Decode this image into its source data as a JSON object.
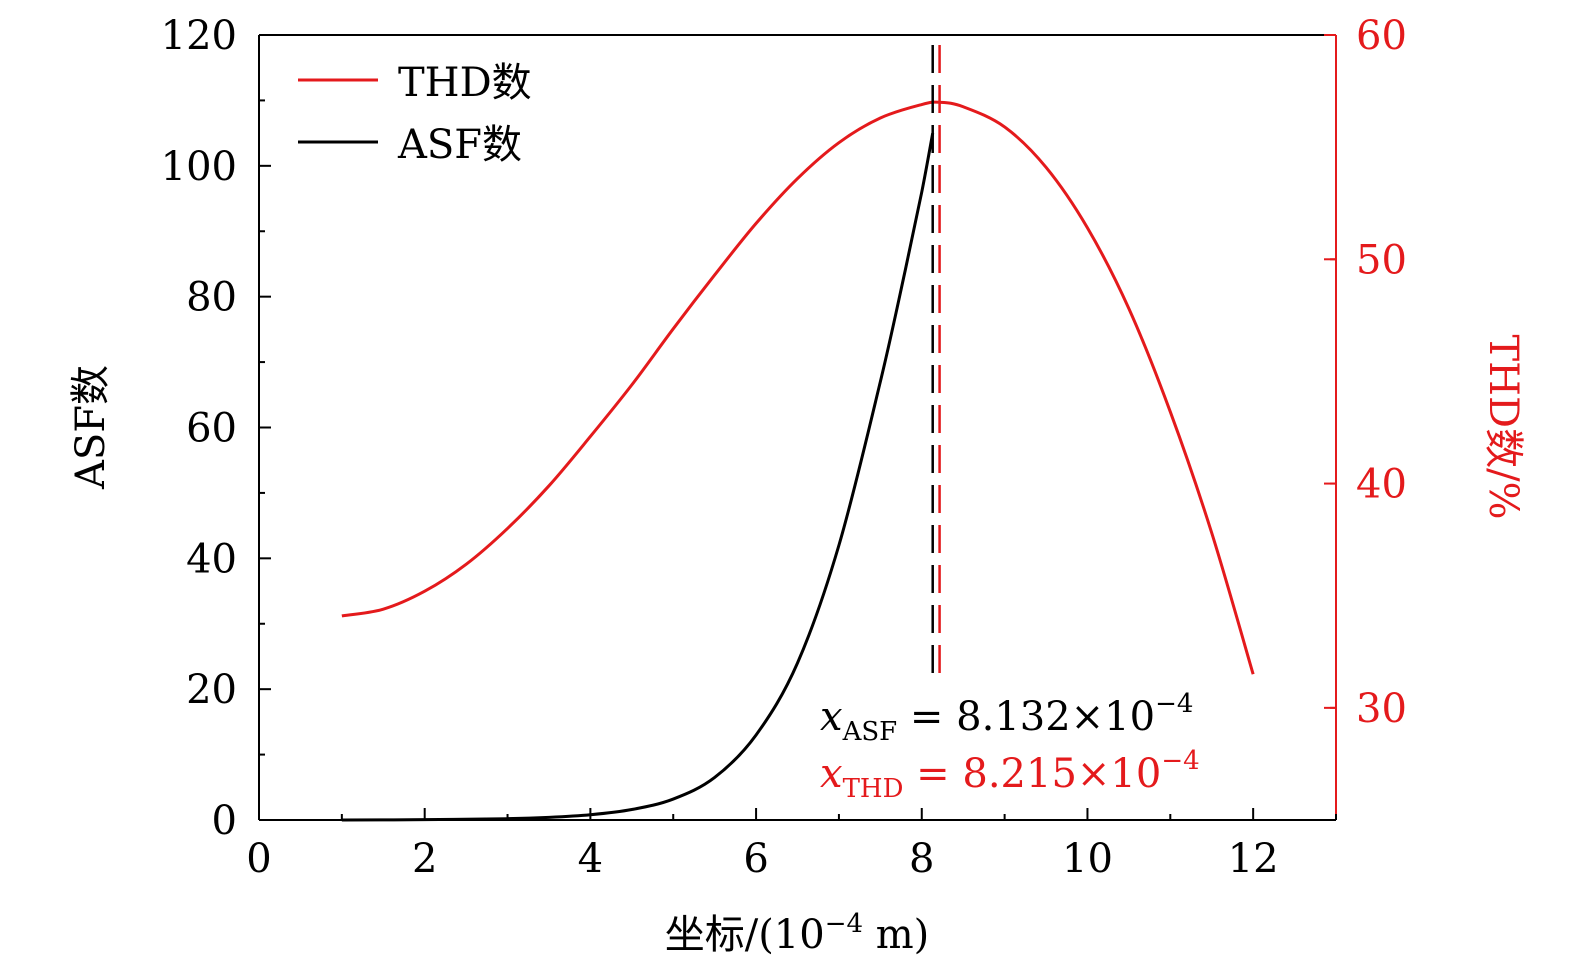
{
  "chart_data": {
    "type": "line",
    "xlabel": "坐标/(10",
    "xlabel_exp": "−4",
    "xlabel_unit": " m)",
    "ylabel_left": "ASF数",
    "ylabel_right": "THD数/%",
    "xlim": [
      0,
      13
    ],
    "ylim_left": [
      0,
      120
    ],
    "ylim_right": [
      25,
      60
    ],
    "x_ticks": [
      0,
      2,
      4,
      6,
      8,
      10,
      12
    ],
    "x_tick_labels": [
      "0",
      "2",
      "4",
      "6",
      "8",
      "10",
      "12"
    ],
    "y_left_ticks": [
      0,
      20,
      40,
      60,
      80,
      100,
      120
    ],
    "y_left_tick_labels": [
      "0",
      "20",
      "40",
      "60",
      "80",
      "100",
      "120"
    ],
    "y_right_ticks": [
      30,
      40,
      50,
      60
    ],
    "y_right_tick_labels": [
      "30",
      "40",
      "50",
      "60"
    ],
    "legend_position": "top-left",
    "series": [
      {
        "name": "THD数",
        "axis": "right",
        "color": "#e41a1c",
        "x": [
          1,
          1.5,
          2,
          2.5,
          3,
          3.5,
          4,
          4.5,
          5,
          5.5,
          6,
          6.5,
          7,
          7.5,
          8,
          8.215,
          8.5,
          9,
          9.5,
          10,
          10.5,
          11,
          11.5,
          12
        ],
        "y": [
          34.1,
          34.4,
          35.2,
          36.4,
          38.0,
          39.9,
          42.1,
          44.4,
          46.9,
          49.3,
          51.6,
          53.6,
          55.2,
          56.3,
          56.9,
          57.0,
          56.8,
          55.9,
          54.1,
          51.4,
          47.8,
          43.2,
          37.8,
          31.5
        ]
      },
      {
        "name": "ASF数",
        "axis": "left",
        "color": "#000000",
        "x": [
          1,
          2,
          3,
          3.5,
          4,
          4.5,
          5,
          5.5,
          6,
          6.5,
          7,
          7.5,
          7.8,
          8.0,
          8.132
        ],
        "y": [
          0,
          0.05,
          0.2,
          0.4,
          0.8,
          1.6,
          3.2,
          6.5,
          13,
          24,
          42,
          67,
          84,
          96,
          105
        ]
      }
    ],
    "vlines": [
      {
        "x": 8.132,
        "color": "#000000",
        "style": "dashed"
      },
      {
        "x": 8.215,
        "color": "#e41a1c",
        "style": "dashed"
      }
    ],
    "annotations": [
      {
        "var": "x",
        "sub": "ASF",
        "text": " = 8.132×10",
        "sup": "−4",
        "color": "#000000"
      },
      {
        "var": "x",
        "sub": "THD",
        "text": " = 8.215×10",
        "sup": "−4",
        "color": "#e41a1c"
      }
    ]
  }
}
